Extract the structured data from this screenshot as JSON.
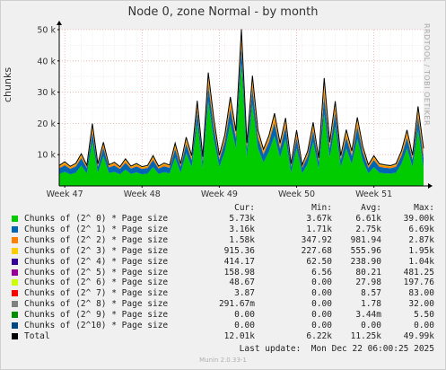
{
  "title": "Node 0, zone Normal - by month",
  "watermark": "RRDTOOL / TOBI OETIKER",
  "footer": "Munin 2.0.33-1",
  "last_update": "Last update:  Mon Dec 22 06:00:25 2025",
  "legend": {
    "headers": [
      "Cur:",
      "Min:",
      "Avg:",
      "Max:"
    ],
    "rows": [
      {
        "name": "Chunks of (2^ 0) * Page size",
        "color": "#00cc00",
        "cur": "5.73k",
        "min": "3.67k",
        "avg": "6.61k",
        "max": "39.00k"
      },
      {
        "name": "Chunks of (2^ 1) * Page size",
        "color": "#0066b3",
        "cur": "3.16k",
        "min": "1.71k",
        "avg": "2.75k",
        "max": "6.69k"
      },
      {
        "name": "Chunks of (2^ 2) * Page size",
        "color": "#ff8000",
        "cur": "1.58k",
        "min": "347.92",
        "avg": "981.94",
        "max": "2.87k"
      },
      {
        "name": "Chunks of (2^ 3) * Page size",
        "color": "#ffcc00",
        "cur": "915.36",
        "min": "227.68",
        "avg": "555.96",
        "max": "1.95k"
      },
      {
        "name": "Chunks of (2^ 4) * Page size",
        "color": "#330099",
        "cur": "414.17",
        "min": "62.50",
        "avg": "238.90",
        "max": "1.04k"
      },
      {
        "name": "Chunks of (2^ 5) * Page size",
        "color": "#990099",
        "cur": "158.98",
        "min": "6.56",
        "avg": "80.21",
        "max": "481.25"
      },
      {
        "name": "Chunks of (2^ 6) * Page size",
        "color": "#ccff00",
        "cur": "48.67",
        "min": "0.00",
        "avg": "27.98",
        "max": "197.76"
      },
      {
        "name": "Chunks of (2^ 7) * Page size",
        "color": "#ff0000",
        "cur": "3.87",
        "min": "0.00",
        "avg": "8.57",
        "max": "83.00"
      },
      {
        "name": "Chunks of (2^ 8) * Page size",
        "color": "#808080",
        "cur": "291.67m",
        "min": "0.00",
        "avg": "1.78",
        "max": "32.00"
      },
      {
        "name": "Chunks of (2^ 9) * Page size",
        "color": "#008f00",
        "cur": "0.00",
        "min": "0.00",
        "avg": "3.44m",
        "max": "5.50"
      },
      {
        "name": "Chunks of (2^10) * Page size",
        "color": "#00487d",
        "cur": "0.00",
        "min": "0.00",
        "avg": "0.00",
        "max": "0.00"
      },
      {
        "name": "Total",
        "color": "#000000",
        "cur": "12.01k",
        "min": "6.22k",
        "avg": "11.25k",
        "max": "49.99k"
      }
    ]
  },
  "chart_data": {
    "type": "area",
    "title": "Node 0, zone Normal - by month",
    "ylabel": "chunks",
    "ylim": [
      0,
      50000
    ],
    "ytick_values": [
      10000,
      20000,
      30000,
      40000,
      50000
    ],
    "ytick_labels": [
      "10 k",
      "20 k",
      "30 k",
      "40 k",
      "50 k"
    ],
    "xtick_labels": [
      "Week 47",
      "Week 48",
      "Week 49",
      "Week 50",
      "Week 51"
    ],
    "xtick_positions": [
      0.5,
      7.5,
      14.5,
      21.5,
      28.5
    ],
    "grid": true,
    "stacked": true,
    "x_days": [
      0,
      0.5,
      1,
      1.5,
      2,
      2.5,
      3,
      3.5,
      4,
      4.5,
      5,
      5.5,
      6,
      6.5,
      7,
      7.5,
      8,
      8.5,
      9,
      9.5,
      10,
      10.5,
      11,
      11.5,
      12,
      12.5,
      13,
      13.5,
      14,
      14.5,
      15,
      15.5,
      16,
      16.5,
      17,
      17.5,
      18,
      18.5,
      19,
      19.5,
      20,
      20.5,
      21,
      21.5,
      22,
      22.5,
      23,
      23.5,
      24,
      24.5,
      25,
      25.5,
      26,
      26.5,
      27,
      27.5,
      28,
      28.5,
      29,
      29.5,
      30,
      30.5,
      31,
      31.5,
      32,
      32.5,
      33
    ],
    "series": [
      {
        "name": "Chunks of (2^ 0) * Page size",
        "color": "#00cc00",
        "values": [
          3800,
          4500,
          3700,
          4200,
          6500,
          3900,
          14000,
          4200,
          9500,
          4100,
          4500,
          3700,
          5200,
          3800,
          4300,
          3700,
          3900,
          6000,
          3800,
          4400,
          4000,
          9000,
          4200,
          10500,
          6000,
          20000,
          5500,
          27000,
          15000,
          6000,
          11000,
          20000,
          12000,
          39000,
          9000,
          26000,
          12000,
          7500,
          11000,
          16000,
          9000,
          15000,
          4200,
          12000,
          4000,
          7000,
          14000,
          5500,
          23000,
          9000,
          19000,
          6000,
          12000,
          7000,
          15000,
          8000,
          4000,
          6000,
          4200,
          4000,
          3900,
          4200,
          7000,
          12000,
          6000,
          18000,
          5730
        ]
      },
      {
        "name": "Chunks of (2^ 1) * Page size",
        "color": "#0066b3",
        "values": [
          1800,
          2100,
          1750,
          2000,
          2400,
          1800,
          3200,
          1900,
          2700,
          1800,
          2000,
          1720,
          2200,
          1750,
          1900,
          1720,
          1800,
          2300,
          1750,
          1900,
          1800,
          2800,
          1900,
          3000,
          2300,
          4200,
          2400,
          5200,
          3800,
          2400,
          3200,
          4800,
          3300,
          6000,
          2900,
          5200,
          3400,
          2600,
          3100,
          4200,
          2900,
          3900,
          1900,
          3400,
          1800,
          2500,
          3700,
          2200,
          5800,
          3000,
          4600,
          2300,
          3500,
          2600,
          4000,
          2800,
          1800,
          2300,
          1900,
          1800,
          1750,
          1900,
          2600,
          3400,
          2400,
          4200,
          3160
        ]
      },
      {
        "name": "Chunks of (2^ 2) * Page size",
        "color": "#ff8000",
        "values": [
          500,
          600,
          450,
          550,
          700,
          480,
          1300,
          520,
          900,
          480,
          560,
          400,
          650,
          430,
          520,
          400,
          460,
          700,
          420,
          550,
          470,
          950,
          520,
          1050,
          700,
          1500,
          720,
          2000,
          1400,
          700,
          1100,
          1800,
          1150,
          2500,
          900,
          2000,
          1200,
          800,
          1050,
          1500,
          900,
          1400,
          520,
          1200,
          480,
          800,
          1300,
          650,
          2400,
          1000,
          1700,
          680,
          1250,
          800,
          1450,
          880,
          500,
          680,
          520,
          480,
          450,
          520,
          800,
          1250,
          720,
          1600,
          1580
        ]
      },
      {
        "name": "Chunks of (2^ 3) * Page size",
        "color": "#ffcc00",
        "values": [
          300,
          350,
          260,
          320,
          420,
          280,
          800,
          300,
          520,
          280,
          330,
          240,
          380,
          250,
          300,
          240,
          270,
          420,
          250,
          320,
          280,
          560,
          300,
          620,
          420,
          900,
          430,
          1200,
          850,
          420,
          650,
          1100,
          680,
          1500,
          540,
          1200,
          720,
          480,
          620,
          900,
          540,
          850,
          310,
          720,
          290,
          480,
          780,
          390,
          1700,
          600,
          1050,
          410,
          750,
          480,
          870,
          530,
          300,
          410,
          310,
          290,
          270,
          310,
          480,
          750,
          430,
          960,
          915
        ]
      },
      {
        "name": "Chunks of (2^ 4) * Page size",
        "color": "#330099",
        "values": [
          100,
          130,
          80,
          110,
          180,
          90,
          400,
          110,
          230,
          90,
          120,
          70,
          160,
          80,
          110,
          70,
          90,
          180,
          80,
          120,
          95,
          250,
          110,
          280,
          180,
          420,
          190,
          560,
          390,
          180,
          290,
          500,
          310,
          700,
          240,
          560,
          330,
          210,
          280,
          420,
          240,
          390,
          115,
          330,
          105,
          210,
          360,
          170,
          900,
          270,
          490,
          180,
          340,
          210,
          400,
          240,
          110,
          180,
          115,
          105,
          95,
          115,
          210,
          340,
          190,
          440,
          414
        ]
      },
      {
        "name": "Chunks of (2^ 5) * Page size",
        "color": "#990099",
        "values": [
          20,
          30,
          10,
          25,
          55,
          15,
          150,
          25,
          75,
          15,
          30,
          8,
          45,
          12,
          25,
          8,
          18,
          55,
          12,
          30,
          20,
          80,
          25,
          95,
          55,
          150,
          60,
          200,
          135,
          55,
          95,
          180,
          100,
          260,
          75,
          200,
          110,
          65,
          90,
          150,
          75,
          135,
          25,
          110,
          22,
          65,
          125,
          50,
          420,
          85,
          175,
          55,
          115,
          65,
          140,
          75,
          22,
          55,
          25,
          22,
          18,
          25,
          65,
          115,
          60,
          160,
          159
        ]
      },
      {
        "name": "Chunks of (2^ 6) * Page size",
        "color": "#ccff00",
        "values": [
          5,
          8,
          0,
          6,
          15,
          2,
          60,
          6,
          25,
          2,
          8,
          0,
          12,
          0,
          6,
          0,
          3,
          15,
          0,
          8,
          4,
          28,
          6,
          32,
          15,
          55,
          18,
          75,
          50,
          15,
          32,
          65,
          35,
          110,
          25,
          75,
          38,
          20,
          30,
          55,
          25,
          50,
          6,
          38,
          5,
          20,
          45,
          14,
          190,
          28,
          62,
          15,
          40,
          20,
          50,
          25,
          5,
          15,
          6,
          5,
          3,
          6,
          20,
          40,
          18,
          58,
          49
        ]
      },
      {
        "name": "Chunks of (2^ 7) * Page size",
        "color": "#ff0000",
        "values": [
          0,
          2,
          0,
          1,
          4,
          0,
          20,
          1,
          8,
          0,
          2,
          0,
          3,
          0,
          1,
          0,
          0,
          4,
          0,
          2,
          1,
          9,
          1,
          10,
          4,
          18,
          5,
          25,
          16,
          4,
          10,
          22,
          11,
          40,
          8,
          25,
          12,
          6,
          9,
          18,
          8,
          16,
          1,
          12,
          1,
          6,
          14,
          4,
          80,
          9,
          20,
          4,
          13,
          6,
          16,
          8,
          1,
          4,
          1,
          1,
          0,
          1,
          6,
          13,
          5,
          19,
          4
        ]
      },
      {
        "name": "Chunks of (2^ 8) * Page size",
        "color": "#808080",
        "values": [
          0,
          0,
          0,
          0,
          1,
          0,
          6,
          0,
          2,
          0,
          0,
          0,
          1,
          0,
          0,
          0,
          0,
          1,
          0,
          0,
          0,
          2,
          0,
          3,
          1,
          5,
          1,
          8,
          4,
          1,
          3,
          6,
          3,
          12,
          2,
          8,
          3,
          1,
          2,
          5,
          2,
          4,
          0,
          3,
          0,
          1,
          4,
          1,
          30,
          2,
          6,
          1,
          3,
          1,
          4,
          2,
          0,
          1,
          0,
          0,
          0,
          0,
          1,
          3,
          1,
          5,
          0.29
        ]
      },
      {
        "name": "Chunks of (2^ 9) * Page size",
        "color": "#008f00",
        "values": [
          0,
          0,
          0,
          0,
          0,
          0,
          0,
          0,
          0,
          0,
          0,
          0,
          0,
          0,
          0,
          0,
          0,
          0,
          0,
          0,
          0,
          0,
          0,
          0,
          0,
          0,
          0,
          0,
          0,
          0,
          0,
          0,
          0,
          0,
          0,
          0,
          0,
          0,
          0,
          0,
          0,
          0,
          0,
          0,
          0,
          0,
          0,
          0,
          5,
          0,
          0,
          0,
          0,
          0,
          0,
          0,
          0,
          0,
          0,
          0,
          0,
          0,
          0,
          0,
          0,
          0,
          0
        ]
      },
      {
        "name": "Chunks of (2^10) * Page size",
        "color": "#00487d",
        "values": [
          0,
          0,
          0,
          0,
          0,
          0,
          0,
          0,
          0,
          0,
          0,
          0,
          0,
          0,
          0,
          0,
          0,
          0,
          0,
          0,
          0,
          0,
          0,
          0,
          0,
          0,
          0,
          0,
          0,
          0,
          0,
          0,
          0,
          0,
          0,
          0,
          0,
          0,
          0,
          0,
          0,
          0,
          0,
          0,
          0,
          0,
          0,
          0,
          0,
          0,
          0,
          0,
          0,
          0,
          0,
          0,
          0,
          0,
          0,
          0,
          0,
          0,
          0,
          0,
          0,
          0,
          0
        ]
      }
    ],
    "total_series": {
      "name": "Total",
      "color": "#000000"
    }
  }
}
